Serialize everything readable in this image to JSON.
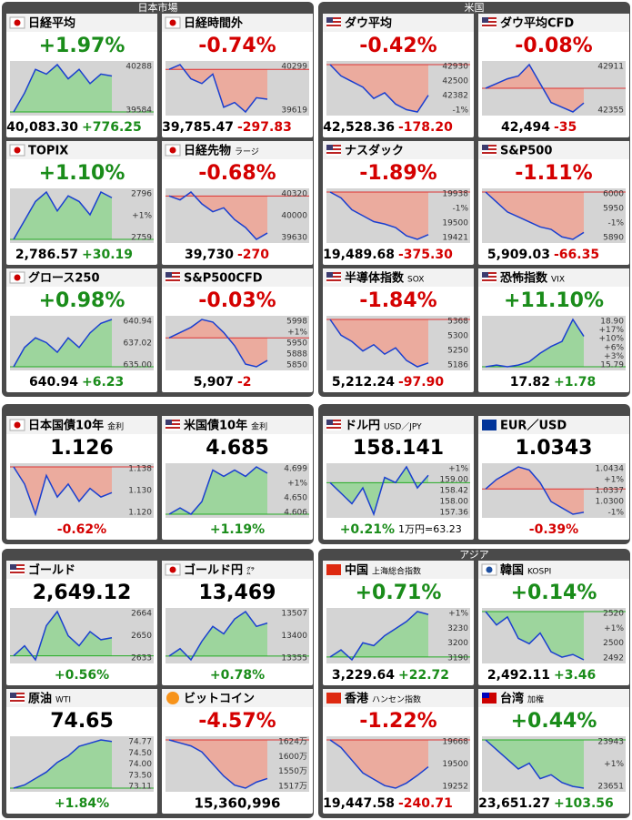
{
  "panels": [
    {
      "title": "日本市場",
      "cards": [
        {
          "name": "日経平均",
          "headline": "+1.97%",
          "value": "40,083.30",
          "change": "+776.25",
          "trend": "up",
          "labels": [
            "40288",
            "39584"
          ],
          "line": [
            39700,
            39900,
            40150,
            40100,
            40200,
            40050,
            40150,
            40000,
            40100,
            40080
          ]
        },
        {
          "name": "日経時間外",
          "headline": "-0.74%",
          "value": "39,785.47",
          "change": "-297.83",
          "trend": "down",
          "labels": [
            "40299",
            "39619"
          ],
          "line": [
            40100,
            40150,
            40000,
            39950,
            40050,
            39700,
            39750,
            39650,
            39800,
            39785
          ]
        },
        {
          "name": "TOPIX",
          "headline": "+1.10%",
          "value": "2,786.57",
          "change": "+30.19",
          "trend": "up",
          "labels": [
            "2796",
            "+1%",
            "2759"
          ],
          "line": [
            2765,
            2775,
            2785,
            2790,
            2780,
            2788,
            2785,
            2778,
            2790,
            2787
          ]
        },
        {
          "name": "日経先物",
          "sub": "ラージ",
          "headline": "-0.68%",
          "value": "39,730",
          "change": "-270",
          "trend": "down",
          "labels": [
            "40320",
            "40000",
            "39630"
          ],
          "line": [
            40200,
            40150,
            40250,
            40100,
            40000,
            40050,
            39900,
            39800,
            39650,
            39730
          ]
        },
        {
          "name": "グロース250",
          "headline": "+0.98%",
          "value": "640.94",
          "change": "+6.23",
          "trend": "up",
          "labels": [
            "640.94",
            "637.02",
            "635.00"
          ],
          "line": [
            636,
            638,
            639,
            638.5,
            637.5,
            639,
            638,
            639.5,
            640.5,
            640.9
          ]
        },
        {
          "name": "S&P500CFD",
          "headline": "-0.03%",
          "value": "5,907",
          "change": "-2",
          "trend": "down",
          "labels": [
            "5998",
            "+1%",
            "5950",
            "5888",
            "5850"
          ],
          "line": [
            5950,
            5960,
            5970,
            5985,
            5980,
            5960,
            5935,
            5900,
            5895,
            5907
          ]
        }
      ]
    },
    {
      "title": "米国",
      "cards": [
        {
          "name": "ダウ平均",
          "headline": "-0.42%",
          "value": "42,528.36",
          "change": "-178.20",
          "trend": "down",
          "labels": [
            "42930",
            "42500",
            "42382",
            "-1%"
          ],
          "line": [
            42800,
            42700,
            42650,
            42600,
            42500,
            42550,
            42450,
            42400,
            42380,
            42528
          ]
        },
        {
          "name": "ダウ平均CFD",
          "headline": "-0.08%",
          "value": "42,494",
          "change": "-35",
          "trend": "down",
          "labels": [
            "42911",
            "42355"
          ],
          "line": [
            42650,
            42700,
            42750,
            42780,
            42900,
            42700,
            42500,
            42450,
            42400,
            42494
          ]
        },
        {
          "name": "ナスダック",
          "headline": "-1.89%",
          "value": "19,489.68",
          "change": "-375.30",
          "trend": "down",
          "labels": [
            "19938",
            "-1%",
            "19500",
            "19421"
          ],
          "line": [
            19850,
            19800,
            19700,
            19650,
            19600,
            19580,
            19550,
            19480,
            19450,
            19490
          ]
        },
        {
          "name": "S&P500",
          "headline": "-1.11%",
          "value": "5,909.03",
          "change": "-66.35",
          "trend": "down",
          "labels": [
            "6000",
            "5950",
            "-1%",
            "5890"
          ],
          "line": [
            5990,
            5970,
            5950,
            5940,
            5930,
            5920,
            5915,
            5900,
            5895,
            5909
          ]
        },
        {
          "name": "半導体指数",
          "sub": "SOX",
          "headline": "-1.84%",
          "value": "5,212.24",
          "change": "-97.90",
          "trend": "down",
          "labels": [
            "5368",
            "5300",
            "5250",
            "5186"
          ],
          "line": [
            5350,
            5300,
            5280,
            5250,
            5270,
            5240,
            5260,
            5220,
            5200,
            5212
          ]
        },
        {
          "name": "恐怖指数",
          "sub": "VIX",
          "headline": "+11.10%",
          "value": "17.82",
          "change": "+1.78",
          "trend": "up",
          "labels": [
            "18.90",
            "+17%",
            "+10%",
            "+6%",
            "+3%",
            "15.79"
          ],
          "line": [
            16.0,
            16.1,
            16.0,
            16.1,
            16.3,
            16.8,
            17.2,
            17.5,
            18.8,
            17.8
          ]
        }
      ]
    },
    {
      "cards": [
        {
          "name": "日本国債10年",
          "sub": "金利",
          "headline": "1.126",
          "change": "-0.62%",
          "trend": "down",
          "labels": [
            "1.138",
            "1.130",
            "1.120"
          ],
          "line": [
            1.132,
            1.128,
            1.121,
            1.13,
            1.125,
            1.128,
            1.124,
            1.127,
            1.125,
            1.126
          ]
        },
        {
          "name": "米国債10年",
          "sub": "金利",
          "headline": "4.685",
          "change": "+1.19%",
          "trend": "up",
          "labels": [
            "4.699",
            "+1%",
            "4.650",
            "4.606"
          ],
          "line": [
            4.62,
            4.63,
            4.62,
            4.64,
            4.69,
            4.68,
            4.69,
            4.68,
            4.695,
            4.685
          ]
        }
      ]
    },
    {
      "cards": [
        {
          "name": "ドル円",
          "sub": "USD／JPY",
          "headline": "158.141",
          "change": "+0.21%",
          "note": "1万円=63.23",
          "trend": "up",
          "labels": [
            "+1%",
            "159.00",
            "158.42",
            "158.00",
            "157.36"
          ],
          "line": [
            158.0,
            157.8,
            157.6,
            157.9,
            157.4,
            158.1,
            158.0,
            158.3,
            157.9,
            158.14
          ]
        },
        {
          "name": "EUR／USD",
          "headline": "1.0343",
          "change": "-0.39%",
          "trend": "down",
          "labels": [
            "1.0434",
            "+1%",
            "1.0337",
            "1.0300",
            "-1%"
          ],
          "line": [
            1.038,
            1.0395,
            1.0405,
            1.0415,
            1.041,
            1.039,
            1.036,
            1.035,
            1.034,
            1.0343
          ]
        }
      ]
    },
    {
      "cards": [
        {
          "name": "ゴールド",
          "headline": "2,649.12",
          "change": "+0.56%",
          "trend": "up",
          "labels": [
            "2664",
            "2650",
            "2633"
          ],
          "line": [
            2640,
            2645,
            2638,
            2655,
            2662,
            2650,
            2645,
            2652,
            2648,
            2649
          ]
        },
        {
          "name": "ゴールド円",
          "sub": "㌘",
          "headline": "13,469",
          "change": "+0.78%",
          "trend": "up",
          "labels": [
            "13507",
            "13400",
            "13355"
          ],
          "line": [
            13380,
            13400,
            13370,
            13420,
            13460,
            13440,
            13480,
            13500,
            13460,
            13469
          ]
        },
        {
          "name": "原油",
          "sub": "WTI",
          "headline": "74.65",
          "change": "+1.84%",
          "trend": "up",
          "labels": [
            "74.77",
            "74.50",
            "74.00",
            "73.50",
            "73.11"
          ],
          "line": [
            73.2,
            73.3,
            73.5,
            73.7,
            74.0,
            74.2,
            74.5,
            74.6,
            74.7,
            74.65
          ]
        },
        {
          "name": "ビットコイン",
          "headline": "-4.57%",
          "value": "15,360,996",
          "trend": "down",
          "labels": [
            "1624万",
            "1600万",
            "1550万",
            "1517万"
          ],
          "line": [
            1600,
            1595,
            1590,
            1580,
            1560,
            1540,
            1525,
            1520,
            1530,
            1536
          ]
        }
      ]
    },
    {
      "title": "アジア",
      "cards": [
        {
          "name": "中国",
          "sub": "上海総合指数",
          "headline": "+0.71%",
          "value": "3,229.64",
          "change": "+22.72",
          "trend": "up",
          "labels": [
            "+1%",
            "3230",
            "3200",
            "3190"
          ],
          "line": [
            3200,
            3205,
            3198,
            3210,
            3208,
            3215,
            3220,
            3225,
            3232,
            3230
          ]
        },
        {
          "name": "韓国",
          "sub": "KOSPI",
          "headline": "+0.14%",
          "value": "2,492.11",
          "change": "+3.46",
          "trend": "up",
          "labels": [
            "2520",
            "+1%",
            "2500",
            "2492"
          ],
          "line": [
            2510,
            2505,
            2508,
            2500,
            2498,
            2502,
            2495,
            2493,
            2494,
            2492
          ]
        },
        {
          "name": "香港",
          "sub": "ハンセン指数",
          "headline": "-1.22%",
          "value": "19,447.58",
          "change": "-240.71",
          "trend": "down",
          "labels": [
            "19668",
            "19500",
            "19252"
          ],
          "line": [
            19660,
            19600,
            19500,
            19400,
            19350,
            19300,
            19280,
            19320,
            19380,
            19448
          ]
        },
        {
          "name": "台湾",
          "sub": "加権",
          "headline": "+0.44%",
          "value": "23,651.27",
          "change": "+103.56",
          "trend": "up",
          "labels": [
            "23943",
            "+1%",
            "23651"
          ],
          "line": [
            23900,
            23850,
            23800,
            23750,
            23780,
            23700,
            23720,
            23680,
            23660,
            23651
          ]
        }
      ]
    }
  ]
}
